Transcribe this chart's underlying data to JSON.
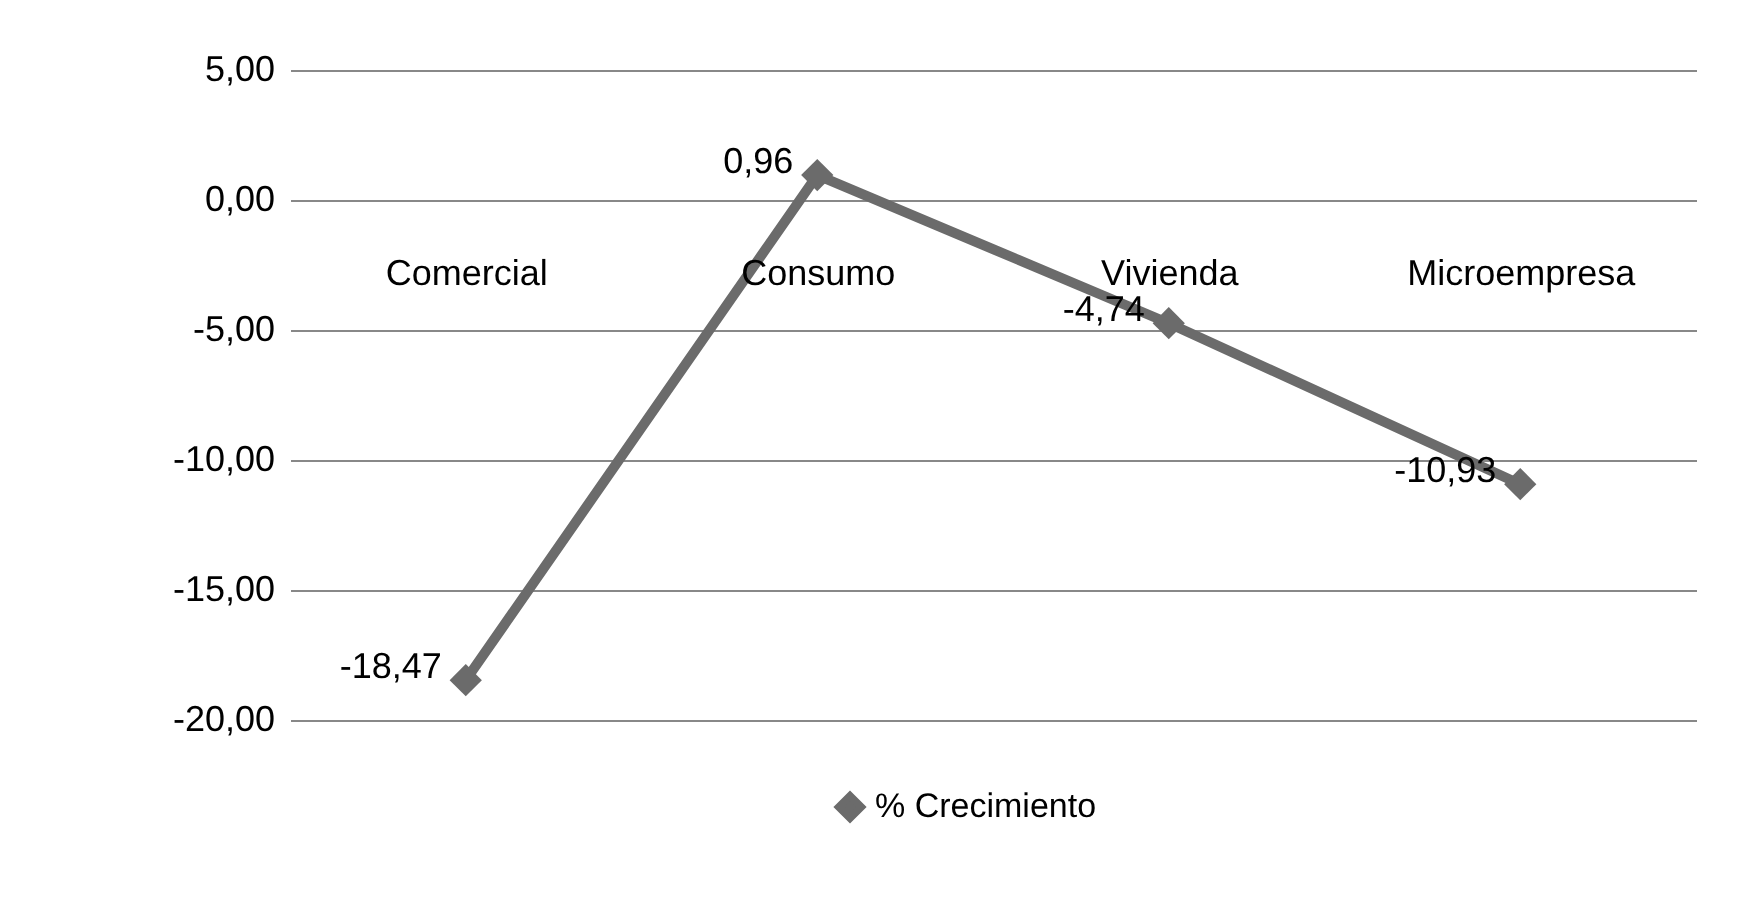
{
  "chart_data": {
    "type": "line",
    "categories": [
      "Comercial",
      "Consumo",
      "Vivienda",
      "Microempresa"
    ],
    "series": [
      {
        "name": "% Crecimiento",
        "color": "#6b6b6b",
        "values": [
          -18.47,
          0.96,
          -4.74,
          -10.93
        ],
        "value_labels": [
          "-18,47",
          "0,96",
          "-4,74",
          "-10,93"
        ]
      }
    ],
    "ylim": [
      -20,
      5
    ],
    "yticks": [
      {
        "value": -20,
        "label": "-20,00"
      },
      {
        "value": -15,
        "label": "-15,00"
      },
      {
        "value": -10,
        "label": "-10,00"
      },
      {
        "value": -5,
        "label": "-5,00"
      },
      {
        "value": 0,
        "label": "0,00"
      },
      {
        "value": 5,
        "label": "5,00"
      }
    ],
    "grid": "y",
    "legend": "bottom",
    "marker": "diamond",
    "line_style": "solid"
  }
}
